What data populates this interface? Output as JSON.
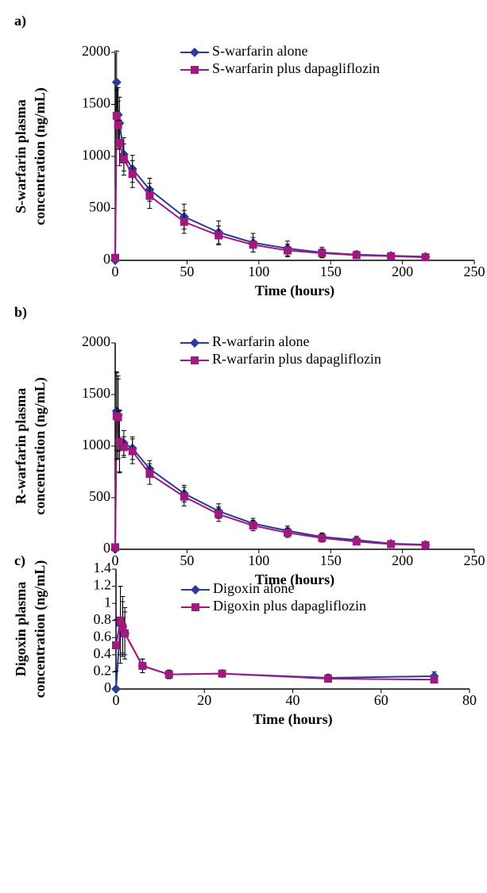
{
  "chart_data": [
    {
      "type": "line",
      "panel_label": "a)",
      "xlabel": "Time (hours)",
      "ylabel": [
        "S-warfarin plasma",
        "concentration (ng/mL)"
      ],
      "x": [
        0,
        1,
        2,
        3,
        6,
        12,
        24,
        48,
        72,
        96,
        120,
        144,
        168,
        192,
        216
      ],
      "series": [
        {
          "name": "S-warfarin alone",
          "color": "#2b3a98",
          "marker": "diamond",
          "values": [
            0,
            1713,
            1400,
            1320,
            1020,
            880,
            680,
            420,
            270,
            170,
            115,
            75,
            55,
            45,
            35
          ],
          "errors": [
            0,
            300,
            260,
            250,
            160,
            130,
            110,
            120,
            110,
            90,
            70,
            50,
            35,
            25,
            15
          ]
        },
        {
          "name": "S-warfarin plus dapagliflozin",
          "color": "#a0197f",
          "marker": "square",
          "values": [
            25,
            1390,
            1300,
            1130,
            970,
            830,
            620,
            370,
            240,
            150,
            95,
            70,
            50,
            40,
            30
          ],
          "errors": [
            0,
            250,
            230,
            220,
            150,
            130,
            120,
            110,
            90,
            70,
            60,
            40,
            30,
            20,
            15
          ]
        }
      ],
      "xlim": [
        0,
        250
      ],
      "xticks": [
        0,
        50,
        100,
        150,
        200,
        250
      ],
      "ylim": [
        0,
        2000
      ],
      "yticks": [
        0,
        500,
        1000,
        1500,
        2000
      ]
    },
    {
      "type": "line",
      "panel_label": "b)",
      "xlabel": "Time (hours)",
      "ylabel": [
        "R-warfarin plasma",
        "concentration (ng/mL)"
      ],
      "x": [
        0,
        1,
        2,
        3,
        6,
        12,
        24,
        48,
        72,
        96,
        120,
        144,
        168,
        192,
        216
      ],
      "series": [
        {
          "name": "R-warfarin alone",
          "color": "#2b3a98",
          "marker": "diamond",
          "values": [
            0,
            1340,
            1300,
            1050,
            1030,
            980,
            780,
            540,
            370,
            250,
            180,
            120,
            90,
            55,
            45
          ],
          "errors": [
            0,
            380,
            350,
            300,
            120,
            110,
            80,
            80,
            70,
            50,
            45,
            40,
            35,
            25,
            15
          ]
        },
        {
          "name": "R-warfarin plus dapagliflozin",
          "color": "#a0197f",
          "marker": "square",
          "values": [
            20,
            1290,
            1280,
            1040,
            990,
            950,
            730,
            510,
            340,
            230,
            160,
            110,
            75,
            50,
            40
          ],
          "errors": [
            0,
            420,
            400,
            300,
            100,
            120,
            100,
            90,
            70,
            50,
            45,
            40,
            30,
            20,
            15
          ]
        }
      ],
      "xlim": [
        0,
        250
      ],
      "xticks": [
        0,
        50,
        100,
        150,
        200,
        250
      ],
      "ylim": [
        0,
        2000
      ],
      "yticks": [
        0,
        500,
        1000,
        1500,
        2000
      ]
    },
    {
      "type": "line",
      "panel_label": "c)",
      "xlabel": "Time (hours)",
      "ylabel": [
        "Digoxin plasma",
        "concentration (ng/mL)"
      ],
      "x": [
        0,
        1,
        1.5,
        2,
        6,
        12,
        24,
        48,
        72
      ],
      "series": [
        {
          "name": "Digoxin alone",
          "color": "#2b3a98",
          "marker": "diamond",
          "values": [
            0,
            0.75,
            0.73,
            0.65,
            0.27,
            0.17,
            0.18,
            0.13,
            0.15
          ],
          "errors": [
            0,
            0.45,
            0.35,
            0.3,
            0.08,
            0.05,
            0.04,
            0.04,
            0.05
          ]
        },
        {
          "name": "Digoxin plus dapagliflozin",
          "color": "#a0197f",
          "marker": "square",
          "values": [
            0.51,
            0.8,
            0.72,
            0.65,
            0.27,
            0.17,
            0.18,
            0.12,
            0.11
          ],
          "errors": [
            0.3,
            0.4,
            0.3,
            0.25,
            0.08,
            0.05,
            0.04,
            0.03,
            0.02
          ]
        }
      ],
      "xlim": [
        0,
        80
      ],
      "xticks": [
        0,
        20,
        40,
        60,
        80
      ],
      "ylim": [
        0,
        1.4
      ],
      "yticks": [
        0,
        0.2,
        0.4,
        0.6,
        0.8,
        1,
        1.2,
        1.4
      ]
    }
  ]
}
